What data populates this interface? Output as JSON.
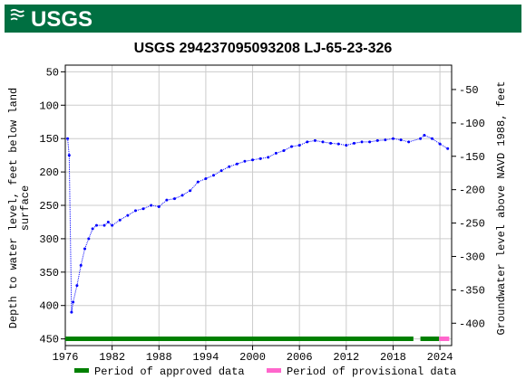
{
  "header": {
    "logo": "USGS"
  },
  "chart_data": {
    "type": "line",
    "title": "USGS 294237095093208 LJ-65-23-326",
    "ylabel": [
      "Depth to water level, feet below land",
      "surface"
    ],
    "y2label": "Groundwater level above NAVD 1988, feet",
    "xlim": [
      1976,
      2025.5
    ],
    "xticks": [
      1976,
      1982,
      1988,
      1994,
      2000,
      2006,
      2012,
      2018,
      2024
    ],
    "ylim": [
      460,
      40
    ],
    "yticks": [
      50,
      100,
      150,
      200,
      250,
      300,
      350,
      400,
      450
    ],
    "y2lim": [
      -433.5,
      -13.5
    ],
    "y2ticks": [
      -50,
      -100,
      -150,
      -200,
      -250,
      -300,
      -350,
      -400
    ],
    "grid": true,
    "series": [
      {
        "color": "#0000ff",
        "x": [
          1976.3,
          1976.5,
          1976.8,
          1977,
          1977.5,
          1978,
          1978.5,
          1979,
          1979.5,
          1980,
          1981,
          1981.5,
          1982,
          1983,
          1984,
          1985,
          1986,
          1987,
          1988,
          1989,
          1990,
          1991,
          1992,
          1993,
          1994,
          1995,
          1996,
          1997,
          1998,
          1999,
          2000,
          2001,
          2002,
          2003,
          2004,
          2005,
          2006,
          2007,
          2008,
          2009,
          2010,
          2011,
          2012,
          2013,
          2014,
          2015,
          2016,
          2017,
          2018,
          2019,
          2020,
          2021.5,
          2022,
          2023,
          2024,
          2025
        ],
        "values": [
          150,
          175,
          410,
          395,
          370,
          340,
          315,
          300,
          285,
          280,
          280,
          275,
          280,
          272,
          265,
          258,
          255,
          250,
          252,
          242,
          240,
          235,
          228,
          215,
          210,
          205,
          198,
          192,
          188,
          184,
          182,
          180,
          178,
          172,
          168,
          162,
          160,
          155,
          153,
          155,
          157,
          158,
          160,
          157,
          155,
          155,
          153,
          152,
          150,
          152,
          155,
          150,
          145,
          150,
          158,
          165
        ]
      }
    ],
    "periods": [
      {
        "name": "Period of approved data",
        "color": "#008000",
        "spans": [
          [
            1976,
            2020.6
          ],
          [
            2021.5,
            2023.9
          ]
        ]
      },
      {
        "name": "Period of provisional data",
        "color": "#ff66cc",
        "spans": [
          [
            2023.9,
            2025.2
          ]
        ]
      }
    ]
  }
}
